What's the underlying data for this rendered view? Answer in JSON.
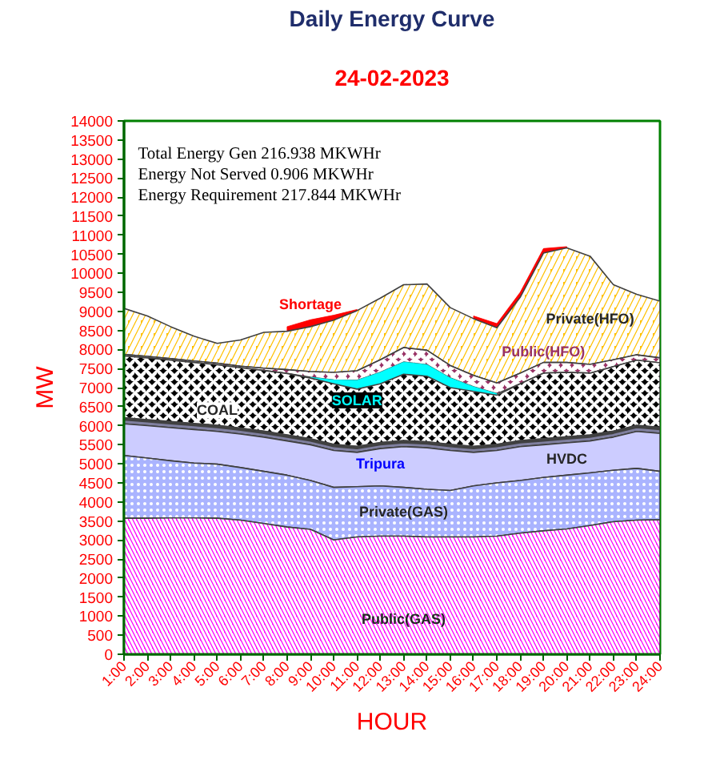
{
  "chart_data": {
    "type": "area",
    "stacked": true,
    "title": "Daily Energy Curve",
    "subtitle": "24-02-2023",
    "xlabel": "HOUR",
    "ylabel": "MW",
    "categories": [
      "1:00",
      "2:00",
      "3:00",
      "4:00",
      "5:00",
      "6:00",
      "7:00",
      "8:00",
      "9:00",
      "10:00",
      "11:00",
      "12:00",
      "13:00",
      "14:00",
      "15:00",
      "16:00",
      "17:00",
      "18:00",
      "19:00",
      "20:00",
      "21:00",
      "22:00",
      "23:00",
      "24:00"
    ],
    "ylim": [
      0,
      14000
    ],
    "yticks": [
      0,
      500,
      1000,
      1500,
      2000,
      2500,
      3000,
      3500,
      4000,
      4500,
      5000,
      5500,
      6000,
      6500,
      7000,
      7500,
      8000,
      8500,
      9000,
      9500,
      10000,
      10500,
      11000,
      11500,
      12000,
      12500,
      13000,
      13500,
      14000
    ],
    "annotations": [
      "Total Energy Gen 216.938 MKWHr",
      "Energy Not Served 0.906 MKWHr",
      "Energy Requirement 217.844 MKWHr"
    ],
    "series": [
      {
        "name": "Public(GAS)",
        "color": "#ff00ff",
        "values": [
          3570,
          3570,
          3580,
          3580,
          3570,
          3520,
          3430,
          3340,
          3280,
          3000,
          3080,
          3100,
          3100,
          3080,
          3080,
          3080,
          3100,
          3180,
          3240,
          3290,
          3380,
          3480,
          3520,
          3530
        ]
      },
      {
        "name": "Private(GAS)",
        "color": "#aab4ff",
        "values": [
          1650,
          1580,
          1500,
          1440,
          1420,
          1380,
          1370,
          1360,
          1280,
          1380,
          1320,
          1320,
          1280,
          1250,
          1220,
          1340,
          1400,
          1380,
          1400,
          1410,
          1380,
          1350,
          1360,
          1270
        ]
      },
      {
        "name": "HVDC",
        "color": "#ccccff",
        "values": [
          830,
          850,
          870,
          880,
          860,
          880,
          900,
          900,
          940,
          970,
          900,
          980,
          1070,
          1090,
          1050,
          880,
          850,
          890,
          860,
          850,
          840,
          870,
          970,
          1000
        ]
      },
      {
        "name": "Tripura",
        "color": "#7f7f9f",
        "values": [
          100,
          100,
          100,
          100,
          100,
          100,
          100,
          100,
          100,
          100,
          100,
          100,
          100,
          100,
          100,
          100,
          100,
          100,
          100,
          100,
          100,
          100,
          100,
          100
        ]
      },
      {
        "color": "#404040",
        "values": [
          60,
          60,
          60,
          60,
          60,
          60,
          60,
          60,
          60,
          60,
          60,
          60,
          60,
          60,
          60,
          60,
          60,
          60,
          60,
          60,
          60,
          60,
          60,
          60
        ]
      },
      {
        "name": "COAL",
        "color": "#000000",
        "values": [
          1620,
          1620,
          1610,
          1600,
          1590,
          1580,
          1590,
          1610,
          1590,
          1590,
          1500,
          1540,
          1740,
          1720,
          1490,
          1440,
          1290,
          1490,
          1720,
          1690,
          1620,
          1690,
          1710,
          1690
        ]
      },
      {
        "name": "SOLAR",
        "color": "#00ffff",
        "values": [
          null,
          null,
          null,
          null,
          null,
          null,
          null,
          null,
          20,
          100,
          230,
          300,
          320,
          300,
          250,
          120,
          40,
          null,
          null,
          null,
          null,
          null,
          null,
          null
        ]
      },
      {
        "name": "Public(HFO)",
        "color": "#993366",
        "values": [
          40,
          40,
          40,
          40,
          40,
          40,
          60,
          100,
          150,
          200,
          250,
          330,
          380,
          380,
          330,
          300,
          280,
          280,
          280,
          260,
          230,
          180,
          140,
          130
        ]
      },
      {
        "name": "Private(HFO)",
        "color": "#ffc000",
        "values": [
          1210,
          1060,
          840,
          650,
          520,
          690,
          940,
          1010,
          1180,
          1370,
          1580,
          1620,
          1650,
          1740,
          1520,
          1490,
          1450,
          1990,
          2870,
          3010,
          2840,
          1970,
          1590,
          1490
        ]
      },
      {
        "name": "Shortage",
        "color": "#ff0000",
        "values": [
          null,
          null,
          null,
          null,
          null,
          null,
          null,
          120,
          180,
          130,
          30,
          null,
          null,
          null,
          null,
          70,
          110,
          130,
          120,
          30,
          null,
          null,
          null,
          null
        ]
      }
    ]
  }
}
